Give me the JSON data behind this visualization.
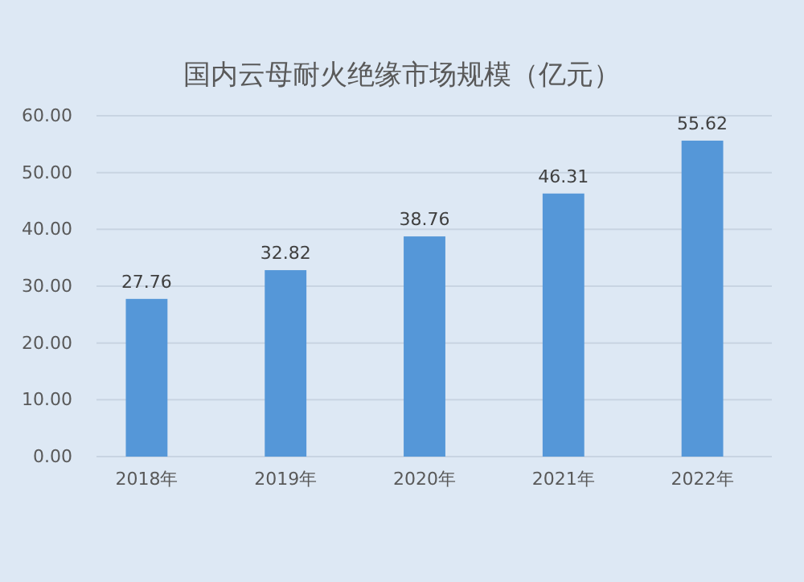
{
  "chart_data": {
    "type": "bar",
    "title": "国内云母耐火绝缘市场规模（亿元）",
    "categories": [
      "2018年",
      "2019年",
      "2020年",
      "2021年",
      "2022年"
    ],
    "values": [
      27.76,
      32.82,
      38.76,
      46.31,
      55.62
    ],
    "value_labels": [
      "27.76",
      "32.82",
      "38.76",
      "46.31",
      "55.62"
    ],
    "color": "#5597d8",
    "ylim": [
      0,
      60
    ],
    "yticks": [
      {
        "value": 0,
        "label": "0.00"
      },
      {
        "value": 10,
        "label": "10.00"
      },
      {
        "value": 20,
        "label": "20.00"
      },
      {
        "value": 30,
        "label": "30.00"
      },
      {
        "value": 40,
        "label": "40.00"
      },
      {
        "value": 50,
        "label": "50.00"
      },
      {
        "value": 60,
        "label": "60.00"
      }
    ],
    "grid": "y"
  }
}
